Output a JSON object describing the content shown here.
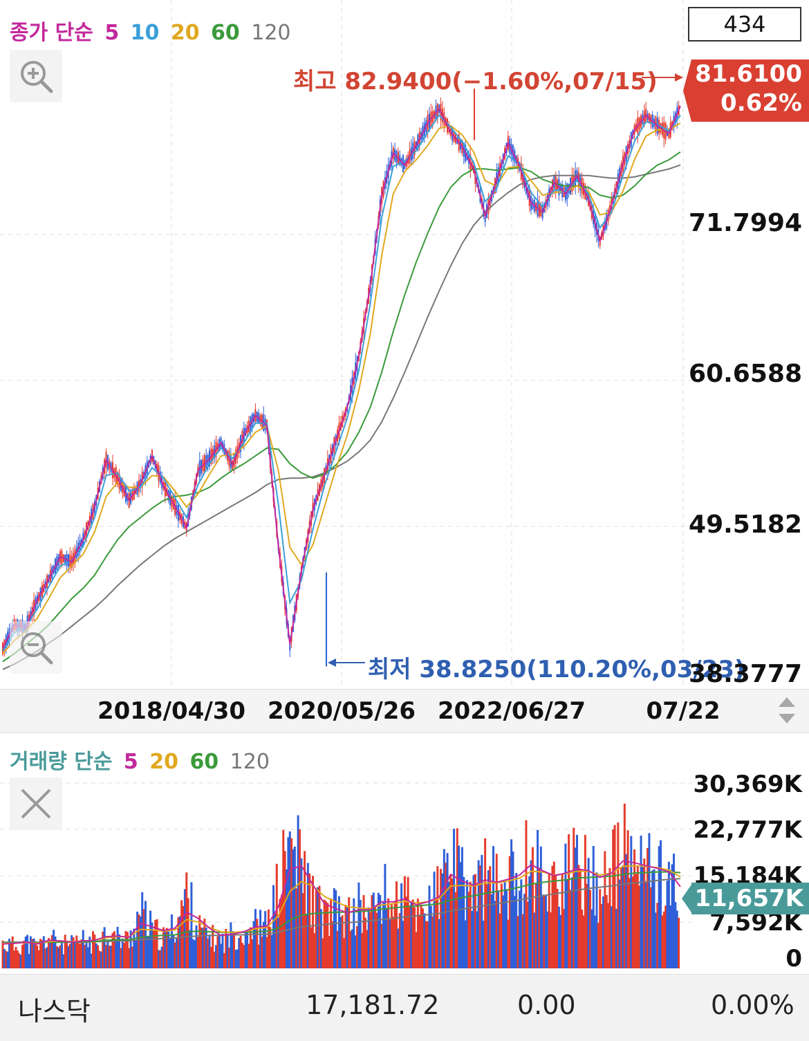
{
  "price_legend": {
    "prefix": "종가 단순",
    "ma": [
      {
        "label": "5",
        "color": "#c2289c"
      },
      {
        "label": "10",
        "color": "#3a9fd8"
      },
      {
        "label": "20",
        "color": "#e0a81e"
      },
      {
        "label": "60",
        "color": "#3a9a3a"
      },
      {
        "label": "120",
        "color": "#777777"
      }
    ]
  },
  "count_box": "434",
  "current_price": {
    "price": "81.6100",
    "change": "0.62%"
  },
  "annotations": {
    "high": "최고 82.9400(−1.60%,07/15)",
    "low": "최저 38.8250(110.20%,03/23)"
  },
  "volume_legend": {
    "prefix": "거래량 단순",
    "ma": [
      {
        "label": "5",
        "color": "#c2289c"
      },
      {
        "label": "20",
        "color": "#e0a81e"
      },
      {
        "label": "60",
        "color": "#3a9a3a"
      },
      {
        "label": "120",
        "color": "#777777"
      }
    ]
  },
  "current_volume": "11,657K",
  "footer": {
    "name": "나스닥",
    "index": "17,181.72",
    "change": "0.00",
    "pct": "0.00%"
  },
  "colors": {
    "up": "#e53b2c",
    "down": "#2f5fd8",
    "high": "#d24433",
    "low": "#2f5fb0"
  },
  "chart_data": [
    {
      "type": "line",
      "title": "",
      "y_tick_labels": [
        "71.7994",
        "60.6588",
        "49.5182",
        "38.3777"
      ],
      "ylim": [
        38.3777,
        82.94
      ],
      "x_tick_labels": [
        "2018/04/30",
        "2020/05/26",
        "2022/06/27",
        "07/22"
      ],
      "high": 82.94,
      "low": 38.825,
      "last": 81.61,
      "series": [
        {
          "name": "5",
          "values": [
            40.2,
            42.0,
            41.8,
            43.9,
            45.5,
            47.2,
            46.8,
            48.5,
            51.0,
            54.6,
            53.2,
            51.5,
            52.8,
            54.9,
            52.6,
            51.0,
            49.4,
            53.8,
            54.7,
            55.9,
            54.2,
            56.5,
            58.0,
            57.2,
            48.0,
            40.5,
            46.1,
            50.8,
            53.4,
            56.1,
            58.6,
            62.5,
            67.9,
            74.8,
            78.0,
            77.1,
            78.6,
            80.3,
            81.4,
            79.6,
            78.5,
            76.8,
            73.2,
            75.9,
            78.8,
            77.0,
            74.2,
            73.5,
            75.8,
            74.9,
            76.3,
            74.5,
            71.3,
            74.0,
            77.2,
            79.8,
            80.9,
            80.1,
            79.5,
            81.6
          ]
        },
        {
          "name": "10",
          "values": [
            40.0,
            41.4,
            41.9,
            43.2,
            44.9,
            46.5,
            46.9,
            48.0,
            50.2,
            53.4,
            53.6,
            52.2,
            52.5,
            54.0,
            53.2,
            51.7,
            50.2,
            52.7,
            54.3,
            55.5,
            54.7,
            55.9,
            57.4,
            57.4,
            51.2,
            43.7,
            45.4,
            49.3,
            52.6,
            55.2,
            57.8,
            61.4,
            66.5,
            73.1,
            77.0,
            77.4,
            78.2,
            79.6,
            80.9,
            80.0,
            78.9,
            77.3,
            74.3,
            75.3,
            77.8,
            77.2,
            75.0,
            73.9,
            75.2,
            75.1,
            75.9,
            74.9,
            72.3,
            73.5,
            76.3,
            78.9,
            80.4,
            80.2,
            79.7,
            80.9
          ]
        },
        {
          "name": "20",
          "values": [
            39.8,
            40.8,
            41.5,
            42.5,
            44.0,
            45.6,
            46.5,
            47.4,
            49.1,
            51.8,
            52.9,
            52.5,
            52.5,
            53.4,
            53.3,
            52.2,
            51.0,
            52.0,
            53.5,
            54.9,
            55.0,
            55.6,
            56.7,
            57.2,
            53.8,
            47.9,
            46.6,
            48.1,
            51.0,
            53.9,
            56.5,
            59.9,
            64.2,
            70.2,
            74.9,
            76.6,
            77.5,
            78.6,
            79.9,
            80.1,
            79.4,
            78.1,
            75.9,
            75.5,
            76.9,
            77.0,
            75.9,
            74.8,
            75.0,
            75.1,
            75.5,
            75.1,
            73.3,
            73.5,
            75.1,
            77.5,
            79.3,
            79.8,
            79.8,
            80.3
          ]
        },
        {
          "name": "60",
          "values": [
            39.2,
            39.8,
            40.5,
            41.2,
            42.0,
            43.0,
            44.0,
            44.8,
            45.8,
            47.2,
            48.5,
            49.5,
            50.2,
            50.9,
            51.5,
            51.8,
            51.9,
            52.1,
            52.5,
            53.2,
            53.8,
            54.3,
            54.9,
            55.5,
            55.4,
            54.3,
            53.6,
            53.2,
            53.5,
            54.2,
            55.2,
            56.7,
            58.6,
            61.3,
            64.4,
            67.2,
            69.7,
            71.9,
            73.9,
            75.4,
            76.3,
            76.8,
            76.8,
            76.7,
            76.8,
            76.9,
            76.6,
            76.0,
            75.7,
            75.5,
            75.5,
            75.4,
            74.8,
            74.6,
            74.8,
            75.5,
            76.4,
            77.1,
            77.5,
            78.1
          ]
        },
        {
          "name": "120",
          "values": [
            38.6,
            39.0,
            39.5,
            40.0,
            40.6,
            41.2,
            41.9,
            42.6,
            43.3,
            44.1,
            45.0,
            45.8,
            46.6,
            47.3,
            48.0,
            48.6,
            49.1,
            49.6,
            50.1,
            50.6,
            51.1,
            51.6,
            52.1,
            52.7,
            53.1,
            53.2,
            53.2,
            53.3,
            53.6,
            54.0,
            54.5,
            55.2,
            56.1,
            57.5,
            59.3,
            61.3,
            63.4,
            65.5,
            67.5,
            69.4,
            71.1,
            72.5,
            73.5,
            74.3,
            75.0,
            75.6,
            76.0,
            76.2,
            76.3,
            76.3,
            76.3,
            76.3,
            76.2,
            76.1,
            76.1,
            76.2,
            76.4,
            76.6,
            76.8,
            77.1
          ]
        }
      ]
    },
    {
      "type": "bar",
      "title": "",
      "y_tick_labels": [
        "30,369K",
        "22,777K",
        "15,184K",
        "7,592K",
        "0"
      ],
      "ylim": [
        0,
        30369
      ],
      "unit": "K",
      "last": 11657,
      "values": [
        4200,
        3800,
        4500,
        3600,
        5200,
        4100,
        3900,
        4700,
        4400,
        6100,
        5200,
        4800,
        9800,
        6400,
        5100,
        7200,
        12800,
        6900,
        5300,
        4600,
        5800,
        6200,
        7400,
        6800,
        13500,
        21500,
        17200,
        11600,
        8900,
        9600,
        8400,
        10200,
        9100,
        12900,
        10800,
        11800,
        9400,
        11300,
        12600,
        19400,
        14500,
        12800,
        15900,
        13900,
        14800,
        16300,
        19200,
        15600,
        14400,
        15900,
        16800,
        15900,
        13800,
        16400,
        19700,
        17900,
        16900,
        16200,
        15500,
        11657
      ],
      "series": [
        {
          "name": "5",
          "values": [
            4000,
            4100,
            4300,
            4000,
            4600,
            4500,
            4300,
            4500,
            4600,
            5200,
            5300,
            5100,
            7400,
            6800,
            6200,
            6600,
            9200,
            8200,
            6600,
            5400,
            5600,
            6000,
            6800,
            6900,
            10100,
            16200,
            16800,
            13700,
            10600,
            9800,
            9100,
            9600,
            9600,
            10900,
            10900,
            11400,
            10400,
            10900,
            11700,
            15400,
            14300,
            13600,
            14500,
            14100,
            14600,
            15300,
            17000,
            16000,
            15200,
            15600,
            16300,
            16000,
            14900,
            15600,
            17600,
            17300,
            16800,
            16400,
            15800,
            13400
          ]
        },
        {
          "name": "20",
          "values": [
            4100,
            4100,
            4200,
            4100,
            4400,
            4500,
            4400,
            4500,
            4600,
            5000,
            5200,
            5200,
            6400,
            6300,
            6100,
            6300,
            8000,
            7600,
            6700,
            6000,
            5900,
            6000,
            6500,
            6700,
            8600,
            12600,
            14200,
            13500,
            11800,
            10900,
            10100,
            9900,
            9800,
            10400,
            10600,
            11000,
            10700,
            10900,
            11400,
            13500,
            13600,
            13500,
            14000,
            14000,
            14300,
            14800,
            15900,
            15800,
            15300,
            15500,
            15900,
            15900,
            15300,
            15600,
            16700,
            16800,
            16700,
            16500,
            16100,
            15000
          ]
        },
        {
          "name": "60",
          "values": [
            4200,
            4200,
            4200,
            4200,
            4300,
            4300,
            4300,
            4400,
            4400,
            4600,
            4700,
            4700,
            5100,
            5300,
            5400,
            5500,
            6000,
            6100,
            6000,
            5900,
            5900,
            5900,
            6000,
            6100,
            6600,
            7900,
            8700,
            9000,
            9100,
            9200,
            9200,
            9300,
            9400,
            9700,
            9900,
            10100,
            10200,
            10400,
            10600,
            11200,
            11600,
            11900,
            12300,
            12600,
            12900,
            13300,
            13800,
            14100,
            14300,
            14500,
            14800,
            14900,
            15000,
            15100,
            15400,
            15600,
            15700,
            15800,
            15800,
            15700
          ]
        },
        {
          "name": "120",
          "values": [
            4300,
            4300,
            4300,
            4300,
            4300,
            4300,
            4300,
            4300,
            4400,
            4400,
            4500,
            4500,
            4700,
            4800,
            4900,
            5000,
            5200,
            5300,
            5400,
            5400,
            5500,
            5500,
            5600,
            5600,
            5900,
            6400,
            6800,
            7000,
            7200,
            7400,
            7500,
            7600,
            7800,
            8000,
            8200,
            8400,
            8600,
            8800,
            9000,
            9400,
            9700,
            10000,
            10300,
            10600,
            10900,
            11200,
            11600,
            11900,
            12200,
            12500,
            12800,
            13100,
            13300,
            13500,
            13800,
            14000,
            14200,
            14400,
            14600,
            14700
          ]
        }
      ]
    }
  ]
}
